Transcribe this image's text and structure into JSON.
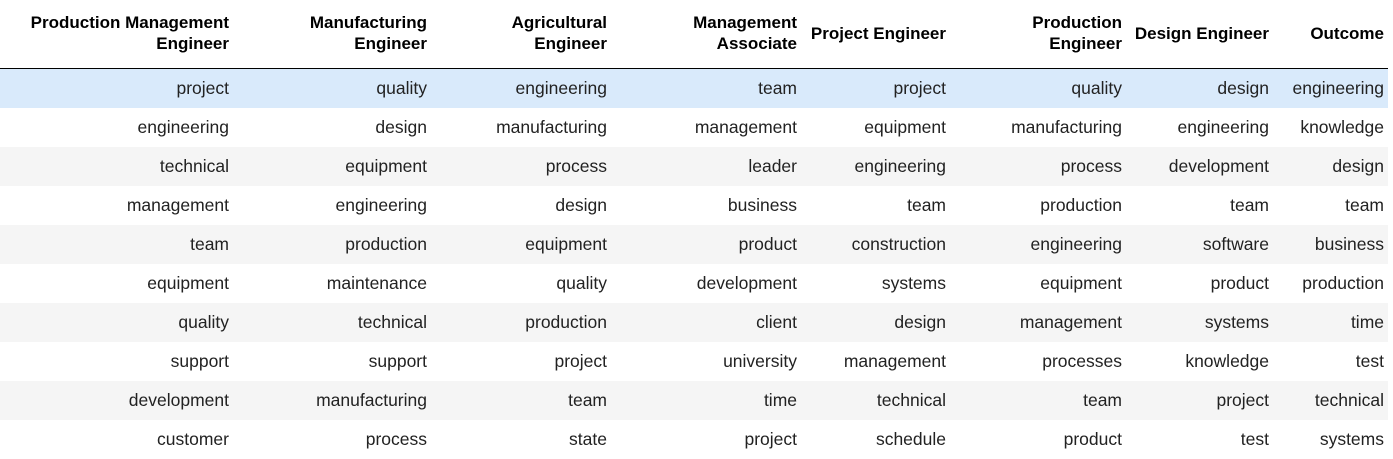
{
  "table": {
    "columns": [
      "Production Management Engineer",
      "Manufacturing Engineer",
      "Agricultural Engineer",
      "Management Associate",
      "Project Engineer",
      "Production Engineer",
      "Design Engineer",
      "Outcome"
    ],
    "rows": [
      [
        "project",
        "quality",
        "engineering",
        "team",
        "project",
        "quality",
        "design",
        "engineering"
      ],
      [
        "engineering",
        "design",
        "manufacturing",
        "management",
        "equipment",
        "manufacturing",
        "engineering",
        "knowledge"
      ],
      [
        "technical",
        "equipment",
        "process",
        "leader",
        "engineering",
        "process",
        "development",
        "design"
      ],
      [
        "management",
        "engineering",
        "design",
        "business",
        "team",
        "production",
        "team",
        "team"
      ],
      [
        "team",
        "production",
        "equipment",
        "product",
        "construction",
        "engineering",
        "software",
        "business"
      ],
      [
        "equipment",
        "maintenance",
        "quality",
        "development",
        "systems",
        "equipment",
        "product",
        "production"
      ],
      [
        "quality",
        "technical",
        "production",
        "client",
        "design",
        "management",
        "systems",
        "time"
      ],
      [
        "support",
        "support",
        "project",
        "university",
        "management",
        "processes",
        "knowledge",
        "test"
      ],
      [
        "development",
        "manufacturing",
        "team",
        "time",
        "technical",
        "team",
        "project",
        "technical"
      ],
      [
        "customer",
        "process",
        "state",
        "project",
        "schedule",
        "product",
        "test",
        "systems"
      ]
    ],
    "highlighted_row": 0,
    "colors": {
      "highlight": "#d9eafb",
      "stripe": "#f5f5f5",
      "header_border": "#000000"
    }
  }
}
